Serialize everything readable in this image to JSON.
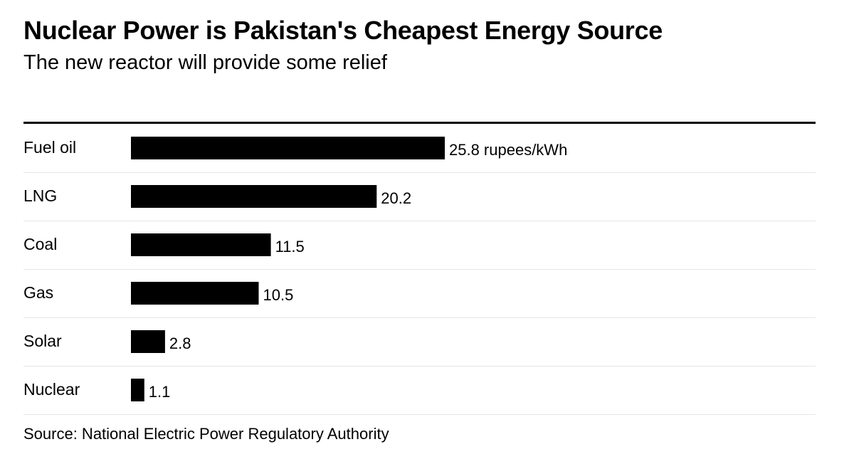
{
  "header": {
    "title": "Nuclear Power is Pakistan's Cheapest Energy Source",
    "subtitle": "The new reactor will provide some relief"
  },
  "chart_data": {
    "type": "bar",
    "orientation": "horizontal",
    "title": "Nuclear Power is Pakistan's Cheapest Energy Source",
    "subtitle": "The new reactor will provide some relief",
    "categories": [
      "Fuel oil",
      "LNG",
      "Coal",
      "Gas",
      "Solar",
      "Nuclear"
    ],
    "values": [
      25.8,
      20.2,
      11.5,
      10.5,
      2.8,
      1.1
    ],
    "value_labels": [
      "25.8 rupees/kWh",
      "20.2",
      "11.5",
      "10.5",
      "2.8",
      "1.1"
    ],
    "unit": "rupees/kWh",
    "xlim": [
      0,
      25.8
    ],
    "xlabel": "",
    "ylabel": "",
    "grid": false,
    "bar_color": "#000000",
    "separator_color": "#e6e6e6"
  },
  "footer": {
    "source": "Source: National Electric Power Regulatory Authority"
  }
}
